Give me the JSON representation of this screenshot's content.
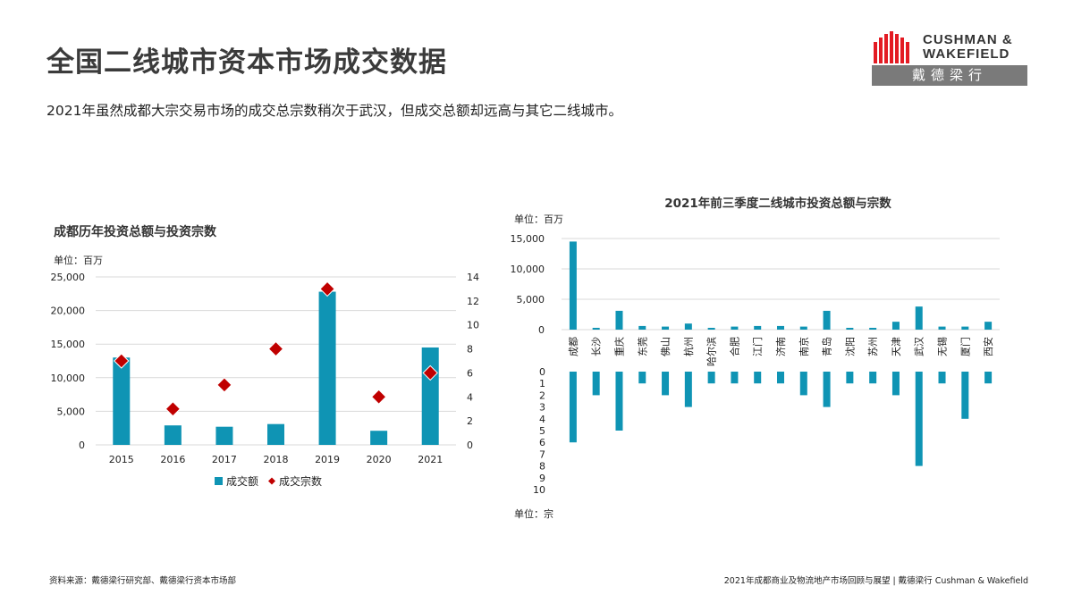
{
  "header": {
    "title": "全国二线城市资本市场成交数据",
    "subtitle": "2021年虽然成都大宗交易市场的成交总宗数稍次于武汉，但成交总额却远高与其它二线城市。"
  },
  "logo": {
    "line1": "CUSHMAN &",
    "line2": "WAKEFIELD",
    "cn": "戴德梁行"
  },
  "colors": {
    "bar": "#0f94b4",
    "diamond": "#c00000",
    "grid": "#d9d9d9",
    "logo_red": "#e31b23"
  },
  "footer": {
    "source": "资料来源：戴德梁行研究部、戴德梁行资本市场部",
    "right": "2021年成都商业及物流地产市场回顾与展望 | 戴德梁行 Cushman & Wakefield"
  },
  "chart_data": [
    {
      "type": "bar",
      "title": "成都历年投资总额与投资宗数",
      "unit": "单位：百万",
      "categories": [
        "2015",
        "2016",
        "2017",
        "2018",
        "2019",
        "2020",
        "2021"
      ],
      "series": [
        {
          "name": "成交额",
          "type": "bar",
          "axis": "left",
          "values": [
            13000,
            2900,
            2700,
            3100,
            22800,
            2100,
            14500
          ]
        },
        {
          "name": "成交宗数",
          "type": "scatter",
          "marker": "diamond",
          "axis": "right",
          "values": [
            7,
            3,
            5,
            8,
            13,
            4,
            6
          ]
        }
      ],
      "ylim_left": [
        0,
        25000
      ],
      "yticks_left": [
        "0",
        "5,000",
        "10,000",
        "15,000",
        "20,000",
        "25,000"
      ],
      "ylim_right": [
        0,
        14
      ],
      "yticks_right": [
        "0",
        "2",
        "4",
        "6",
        "8",
        "10",
        "12",
        "14"
      ],
      "legend": "bottom",
      "grid": true
    },
    {
      "type": "bar",
      "title": "2021年前三季度二线城市投资总额与宗数",
      "unit_top": "单位：百万",
      "unit_bottom": "单位：宗",
      "categories": [
        "成都",
        "长沙",
        "重庆",
        "东莞",
        "佛山",
        "杭州",
        "哈尔滨",
        "合肥",
        "江门",
        "济南",
        "南京",
        "青岛",
        "沈阳",
        "苏州",
        "天津",
        "武汉",
        "无锡",
        "厦门",
        "西安"
      ],
      "series": [
        {
          "axis": "top",
          "values": [
            14500,
            300,
            3100,
            600,
            500,
            1000,
            300,
            500,
            600,
            600,
            500,
            3100,
            300,
            300,
            1300,
            3800,
            500,
            500,
            1300
          ]
        },
        {
          "axis": "bottom",
          "values": [
            6,
            2,
            5,
            1,
            2,
            3,
            1,
            1,
            1,
            1,
            2,
            3,
            1,
            1,
            2,
            8,
            1,
            4,
            1
          ]
        }
      ],
      "ylim_top": [
        0,
        15000
      ],
      "yticks_top": [
        "0",
        "5,000",
        "10,000",
        "15,000"
      ],
      "ylim_bottom": [
        0,
        10
      ],
      "yticks_bottom": [
        "0",
        "1",
        "2",
        "3",
        "4",
        "5",
        "6",
        "7",
        "8",
        "9",
        "10"
      ],
      "grid": true
    }
  ]
}
